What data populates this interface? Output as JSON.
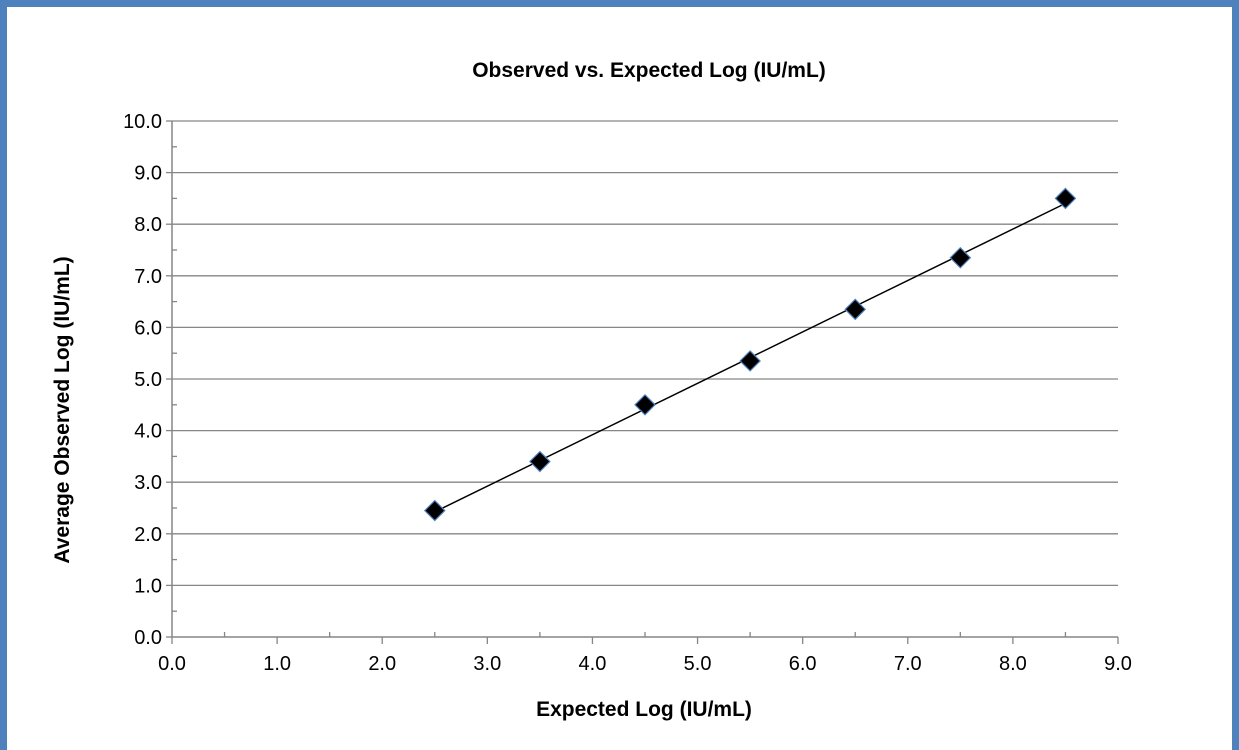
{
  "chart_data": {
    "type": "scatter",
    "title": "Observed vs. Expected Log (IU/mL)",
    "xlabel": "Expected Log (IU/mL)",
    "ylabel": "Average Observed Log  (IU/mL)",
    "xlim": [
      0,
      9
    ],
    "ylim": [
      0,
      10
    ],
    "xticks": [
      "0.0",
      "1.0",
      "2.0",
      "3.0",
      "4.0",
      "5.0",
      "6.0",
      "7.0",
      "8.0",
      "9.0"
    ],
    "yticks": [
      "0.0",
      "1.0",
      "2.0",
      "3.0",
      "4.0",
      "5.0",
      "6.0",
      "7.0",
      "8.0",
      "9.0",
      "10.0"
    ],
    "grid": "horizontal major",
    "legend": "none",
    "series": [
      {
        "x": [
          2.5,
          3.5,
          4.5,
          5.5,
          6.5,
          7.5,
          8.5
        ],
        "y": [
          2.45,
          3.4,
          4.5,
          5.35,
          6.35,
          7.35,
          8.5
        ],
        "marker": "diamond",
        "trendline": "linear"
      }
    ],
    "colors": {
      "marker_fill": "#000000",
      "marker_edge": "#4f81bd",
      "border": "#4f81bd",
      "grid": "#868686"
    }
  }
}
